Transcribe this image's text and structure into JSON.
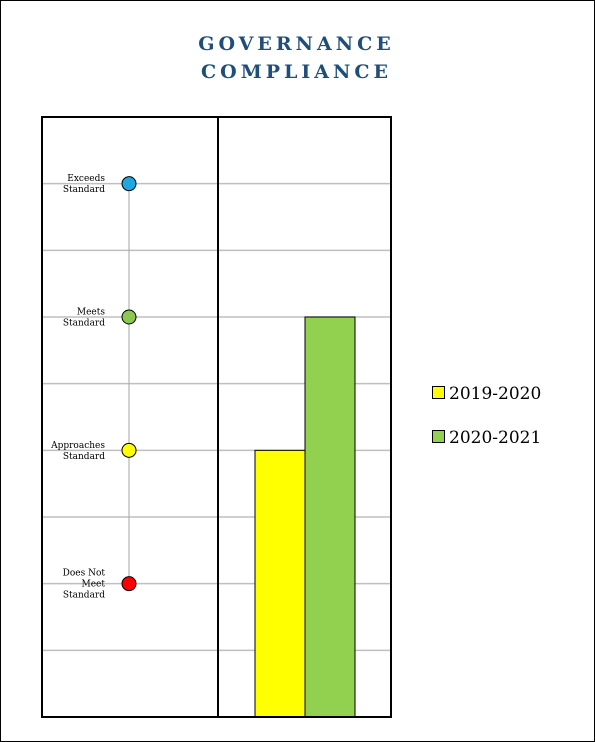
{
  "title_lines": [
    "GOVERNANCE",
    "COMPLIANCE"
  ],
  "chart_data": {
    "type": "bar",
    "title": "GOVERNANCE COMPLIANCE",
    "y_levels": [
      {
        "name": "Exceeds Standard",
        "lines": [
          "Exceeds",
          "Standard"
        ],
        "value": 4,
        "color": "#1ea7e1"
      },
      {
        "name": "Meets Standard",
        "lines": [
          "Meets",
          "Standard"
        ],
        "value": 3,
        "color": "#8cc751"
      },
      {
        "name": "Approaches Standard",
        "lines": [
          "Approaches",
          "Standard"
        ],
        "value": 2,
        "color": "#ffff00"
      },
      {
        "name": "Does Not Meet Standard",
        "lines": [
          "Does Not",
          "Meet",
          "Standard"
        ],
        "value": 1,
        "color": "#ff0000"
      }
    ],
    "ylim": [
      0.0,
      4.5
    ],
    "grid": true,
    "series": [
      {
        "name": "2019-2020",
        "value": 2,
        "color": "#ffff00"
      },
      {
        "name": "2020-2021",
        "value": 3,
        "color": "#92d050"
      }
    ],
    "legend_position": "right"
  }
}
